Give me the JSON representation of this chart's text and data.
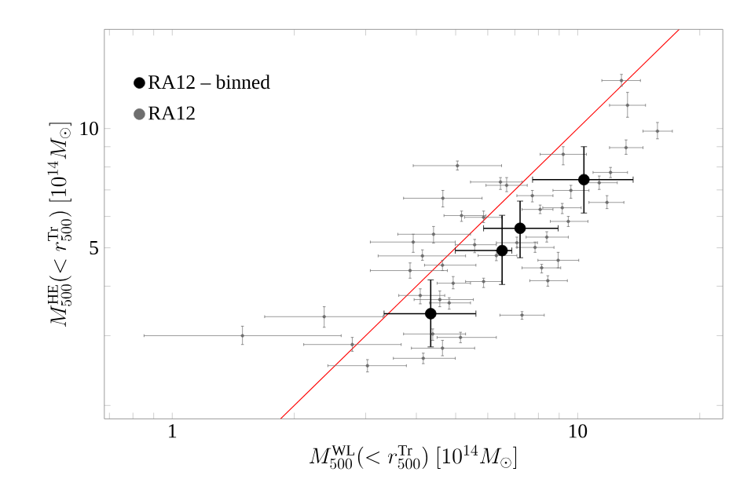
{
  "chart_data": {
    "type": "scatter",
    "xlabel": "M_{500}^{\\mathrm{WL}}(<r_{500}^{\\mathrm{Tr}})\\ [10^{14}M_{\\odot}]",
    "ylabel": "M_{500}^{\\mathrm{HE}}(<r_{500}^{\\mathrm{Tr}})\\ [10^{14}M_{\\odot}]",
    "log": "xy",
    "legend": "top left",
    "marker": "circle",
    "grid": false,
    "xlim": [
      0.68,
      22.8
    ],
    "ylim": [
      1.85,
      17.8
    ],
    "xticks": [
      {
        "value": 0.7,
        "label": null
      },
      {
        "value": 0.8,
        "label": null
      },
      {
        "value": 0.9,
        "label": null
      },
      1,
      {
        "value": 2,
        "label": null
      },
      {
        "value": 3,
        "label": null
      },
      {
        "value": 4,
        "label": null
      },
      {
        "value": 5,
        "label": null
      },
      {
        "value": 6,
        "label": null
      },
      {
        "value": 7,
        "label": null
      },
      {
        "value": 8,
        "label": null
      },
      {
        "value": 9,
        "label": null
      },
      10,
      {
        "value": 20,
        "label": null
      }
    ],
    "yticks": [
      {
        "value": 2,
        "label": null
      },
      {
        "value": 3,
        "label": null
      },
      {
        "value": 4,
        "label": null
      },
      5,
      {
        "value": 6,
        "label": null
      },
      {
        "value": 7,
        "label": null
      },
      {
        "value": 8,
        "label": null
      },
      {
        "value": 9,
        "label": null
      },
      10
    ],
    "series": [
      {
        "name": "RA12 – binned",
        "color": "#000000",
        "x": [
          4.34,
          6.51,
          7.21,
          10.36
        ],
        "values": [
          3.41,
          4.92,
          5.6,
          7.43
        ],
        "xerrors": [
          [
            3.33,
            5.61
          ],
          [
            4.99,
            6.88
          ],
          [
            5.86,
            8.95
          ],
          [
            7.74,
            13.7
          ]
        ],
        "errors": [
          [
            2.81,
            4.15
          ],
          [
            4.04,
            6.04
          ],
          [
            4.72,
            6.56
          ],
          [
            6.12,
            9.0
          ]
        ]
      },
      {
        "name": "RA12",
        "color": "#6e6e6e",
        "x": [
          12.82,
          13.27,
          15.73,
          13.16,
          9.21,
          12.05,
          5.05,
          11.3,
          6.45,
          6.68,
          4.65,
          11.81,
          9.62,
          7.73,
          8.08,
          9.16,
          5.17,
          5.86,
          9.48,
          4.41,
          3.93,
          4.14,
          5.57,
          8.39,
          7.85,
          8.95,
          8.15,
          8.44,
          3.86,
          4.64,
          4.93,
          5.86,
          4.57,
          4.82,
          4.09,
          7.29,
          2.37,
          1.49,
          2.78,
          3.03,
          4.16,
          4.64,
          5.14,
          4.39,
          7.08,
          6.3
        ],
        "values": [
          13.22,
          11.45,
          9.85,
          8.95,
          8.61,
          7.75,
          8.06,
          7.3,
          7.33,
          7.19,
          6.67,
          6.51,
          6.98,
          6.77,
          6.25,
          6.31,
          6.03,
          5.97,
          5.83,
          5.41,
          5.17,
          4.77,
          5.09,
          5.32,
          5.01,
          4.65,
          4.45,
          4.13,
          4.38,
          4.52,
          4.07,
          4.11,
          3.7,
          3.63,
          3.79,
          3.38,
          3.35,
          3.0,
          2.85,
          2.52,
          2.63,
          2.79,
          2.97,
          3.03,
          5.15,
          4.78
        ],
        "xerrors": [
          [
            11.47,
            14.28
          ],
          [
            11.98,
            14.7
          ],
          [
            14.49,
            17.12
          ],
          [
            11.98,
            14.49
          ],
          [
            8.08,
            10.51
          ],
          [
            10.91,
            13.27
          ],
          [
            3.93,
            6.49
          ],
          [
            10.2,
            12.52
          ],
          [
            5.44,
            7.29
          ],
          [
            5.94,
            7.51
          ],
          [
            3.72,
            5.81
          ],
          [
            10.66,
            13.0
          ],
          [
            8.69,
            10.66
          ],
          [
            7.08,
            8.69
          ],
          [
            7.29,
            8.69
          ],
          [
            8.2,
            10.2
          ],
          [
            4.68,
            5.94
          ],
          [
            5.26,
            6.49
          ],
          [
            8.56,
            10.6
          ],
          [
            3.6,
            5.44
          ],
          [
            3.08,
            4.99
          ],
          [
            3.22,
            5.29
          ],
          [
            4.99,
            6.3
          ],
          [
            7.46,
            9.48
          ],
          [
            7.08,
            8.74
          ],
          [
            7.98,
            10.06
          ],
          [
            7.29,
            9.08
          ],
          [
            7.62,
            9.43
          ],
          [
            3.08,
            4.77
          ],
          [
            4.19,
            5.61
          ],
          [
            4.5,
            5.44
          ],
          [
            5.29,
            6.49
          ],
          [
            3.95,
            5.53
          ],
          [
            4.31,
            5.44
          ],
          [
            3.62,
            4.7
          ],
          [
            6.43,
            8.27
          ],
          [
            1.69,
            3.31
          ],
          [
            0.852,
            2.61
          ],
          [
            2.11,
            3.67
          ],
          [
            2.42,
            3.78
          ],
          [
            3.51,
            4.99
          ],
          [
            3.89,
            5.57
          ],
          [
            4.5,
            6.3
          ],
          [
            3.72,
            5.29
          ],
          [
            6.3,
            7.96
          ],
          [
            5.68,
            7.08
          ]
        ],
        "errors": [
          [
            12.79,
            13.7
          ],
          [
            10.68,
            12.34
          ],
          [
            9.42,
            10.36
          ],
          [
            8.61,
            9.36
          ],
          [
            8.1,
            9.0
          ],
          [
            7.52,
            7.98
          ],
          [
            7.86,
            8.28
          ],
          [
            7.02,
            7.59
          ],
          [
            7.02,
            7.52
          ],
          [
            6.93,
            7.52
          ],
          [
            6.34,
            6.98
          ],
          [
            6.28,
            6.77
          ],
          [
            6.67,
            7.19
          ],
          [
            6.53,
            6.98
          ],
          [
            6.1,
            6.41
          ],
          [
            6.1,
            6.47
          ],
          [
            5.83,
            6.19
          ],
          [
            5.79,
            6.19
          ],
          [
            5.66,
            6.0
          ],
          [
            5.14,
            5.66
          ],
          [
            4.87,
            5.41
          ],
          [
            4.65,
            4.94
          ],
          [
            4.86,
            5.25
          ],
          [
            5.17,
            5.49
          ],
          [
            4.87,
            5.17
          ],
          [
            4.45,
            4.87
          ],
          [
            4.32,
            4.54
          ],
          [
            4.0,
            4.25
          ],
          [
            4.19,
            4.58
          ],
          [
            4.38,
            4.65
          ],
          [
            3.94,
            4.23
          ],
          [
            3.97,
            4.19
          ],
          [
            3.55,
            3.89
          ],
          [
            3.5,
            3.74
          ],
          [
            3.61,
            3.94
          ],
          [
            3.3,
            3.45
          ],
          [
            3.15,
            3.55
          ],
          [
            2.85,
            3.17
          ],
          [
            2.74,
            2.97
          ],
          [
            2.43,
            2.61
          ],
          [
            2.55,
            2.71
          ],
          [
            2.67,
            2.92
          ],
          [
            2.88,
            3.06
          ],
          [
            2.92,
            3.12
          ],
          [
            5.01,
            5.32
          ],
          [
            4.64,
            4.93
          ]
        ]
      },
      {
        "type": "line",
        "color": "#ff0000",
        "marker": "none",
        "line_style": "solid",
        "x": [
          1.85,
          17.8
        ],
        "values": [
          1.85,
          17.8
        ]
      }
    ]
  }
}
